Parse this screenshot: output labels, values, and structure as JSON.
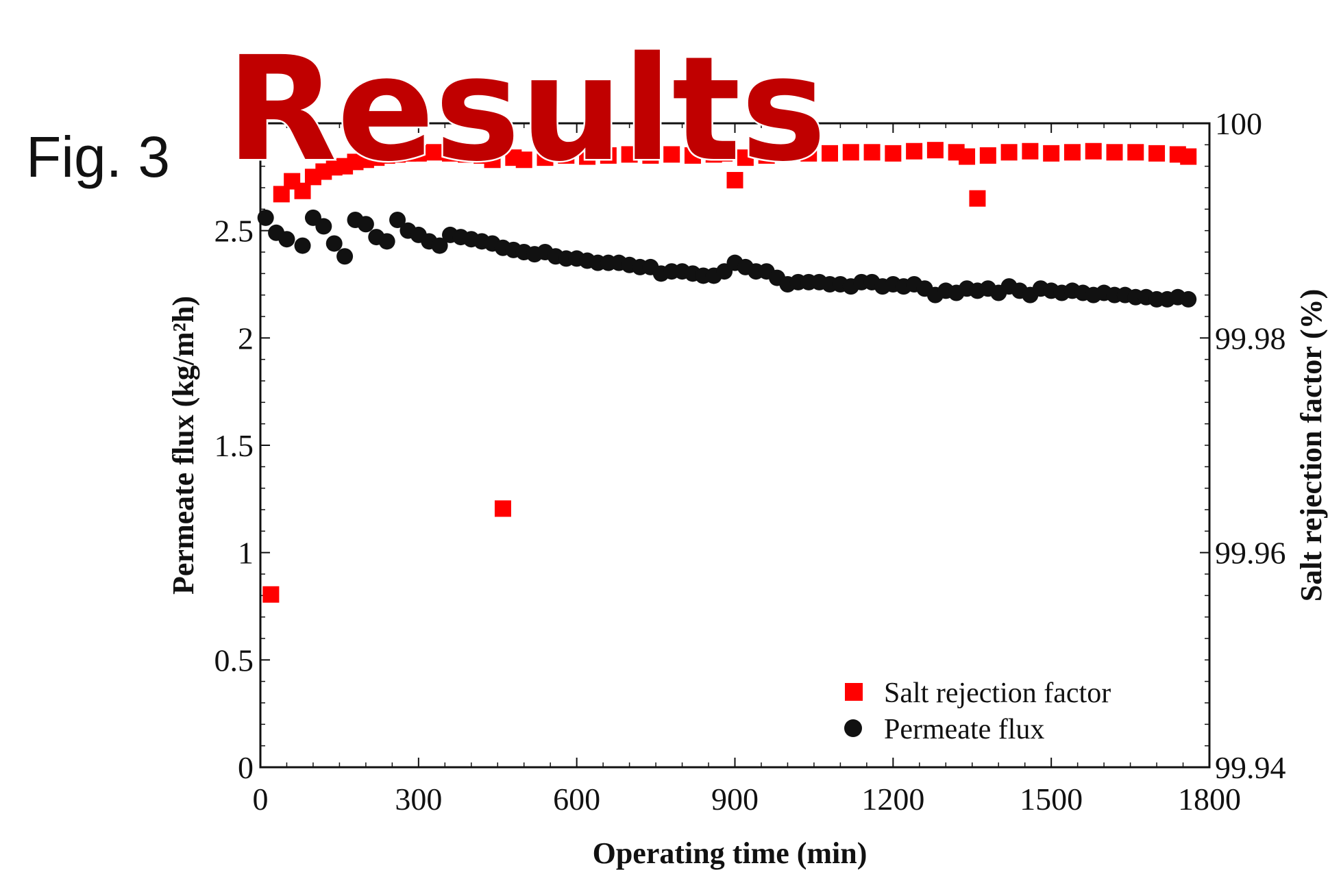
{
  "page": {
    "title": "Results",
    "fig_label": "Fig. 3",
    "title_color": "#c00000"
  },
  "chart_data": {
    "type": "scatter",
    "xlabel": "Operating time (min)",
    "ylabel_left": "Permeate flux (kg/m²h)",
    "ylabel_right": "Salt rejection factor (%)",
    "xlim": [
      0,
      1800
    ],
    "ylim_left": [
      0,
      3
    ],
    "ylim_right": [
      99.94,
      100
    ],
    "x_ticks": [
      "0",
      "300",
      "600",
      "900",
      "1200",
      "1500",
      "1800"
    ],
    "y_ticks_left": [
      "0",
      "0.5",
      "1",
      "1.5",
      "2",
      "2.5"
    ],
    "y_ticks_right": [
      "99.94",
      "99.96",
      "99.98",
      "100"
    ],
    "legend_position": "bottom-right",
    "grid": false,
    "series": [
      {
        "name": "Salt rejection factor",
        "axis": "right",
        "marker": "square",
        "color": "#ff0000",
        "x": [
          20,
          40,
          60,
          80,
          100,
          120,
          140,
          160,
          180,
          200,
          220,
          240,
          260,
          280,
          300,
          330,
          360,
          390,
          420,
          440,
          460,
          480,
          500,
          540,
          580,
          620,
          660,
          700,
          740,
          780,
          820,
          860,
          880,
          900,
          920,
          960,
          1000,
          1040,
          1080,
          1120,
          1160,
          1200,
          1240,
          1280,
          1320,
          1340,
          1360,
          1380,
          1420,
          1460,
          1500,
          1540,
          1580,
          1620,
          1660,
          1700,
          1740,
          1760
        ],
        "values": [
          99.9561,
          99.9934,
          99.9946,
          99.9937,
          99.995,
          99.9955,
          99.9959,
          99.996,
          99.9964,
          99.9966,
          99.9968,
          99.997,
          99.9971,
          99.9972,
          99.9972,
          99.9973,
          99.9972,
          99.9971,
          99.997,
          99.9966,
          99.9641,
          99.9968,
          99.9966,
          99.9968,
          99.997,
          99.9969,
          99.997,
          99.9971,
          99.997,
          99.9971,
          99.997,
          99.9971,
          99.9972,
          99.9947,
          99.9968,
          99.997,
          99.9972,
          99.9972,
          99.9972,
          99.9973,
          99.9973,
          99.9972,
          99.9974,
          99.9975,
          99.9973,
          99.9969,
          99.993,
          99.997,
          99.9973,
          99.9974,
          99.9972,
          99.9973,
          99.9974,
          99.9973,
          99.9973,
          99.9972,
          99.9971,
          99.9969
        ]
      },
      {
        "name": "Permeate flux",
        "axis": "left",
        "marker": "circle",
        "color": "#111111",
        "x": [
          10,
          30,
          50,
          80,
          100,
          120,
          140,
          160,
          180,
          200,
          220,
          240,
          260,
          280,
          300,
          320,
          340,
          360,
          380,
          400,
          420,
          440,
          460,
          480,
          500,
          520,
          540,
          560,
          580,
          600,
          620,
          640,
          660,
          680,
          700,
          720,
          740,
          760,
          780,
          800,
          820,
          840,
          860,
          880,
          900,
          920,
          940,
          960,
          980,
          1000,
          1020,
          1040,
          1060,
          1080,
          1100,
          1120,
          1140,
          1160,
          1180,
          1200,
          1220,
          1240,
          1260,
          1280,
          1300,
          1320,
          1340,
          1360,
          1380,
          1400,
          1420,
          1440,
          1460,
          1480,
          1500,
          1520,
          1540,
          1560,
          1580,
          1600,
          1620,
          1640,
          1660,
          1680,
          1700,
          1720,
          1740,
          1760
        ],
        "values": [
          2.56,
          2.49,
          2.46,
          2.43,
          2.56,
          2.52,
          2.44,
          2.38,
          2.55,
          2.53,
          2.47,
          2.45,
          2.55,
          2.5,
          2.48,
          2.45,
          2.43,
          2.48,
          2.47,
          2.46,
          2.45,
          2.44,
          2.42,
          2.41,
          2.4,
          2.39,
          2.4,
          2.38,
          2.37,
          2.37,
          2.36,
          2.35,
          2.35,
          2.35,
          2.34,
          2.33,
          2.33,
          2.3,
          2.31,
          2.31,
          2.3,
          2.29,
          2.29,
          2.31,
          2.35,
          2.33,
          2.31,
          2.31,
          2.28,
          2.25,
          2.26,
          2.26,
          2.26,
          2.25,
          2.25,
          2.24,
          2.26,
          2.26,
          2.24,
          2.25,
          2.24,
          2.25,
          2.23,
          2.2,
          2.22,
          2.21,
          2.23,
          2.22,
          2.23,
          2.21,
          2.24,
          2.22,
          2.2,
          2.23,
          2.22,
          2.21,
          2.22,
          2.21,
          2.2,
          2.21,
          2.2,
          2.2,
          2.19,
          2.19,
          2.18,
          2.18,
          2.19,
          2.18
        ]
      }
    ]
  }
}
